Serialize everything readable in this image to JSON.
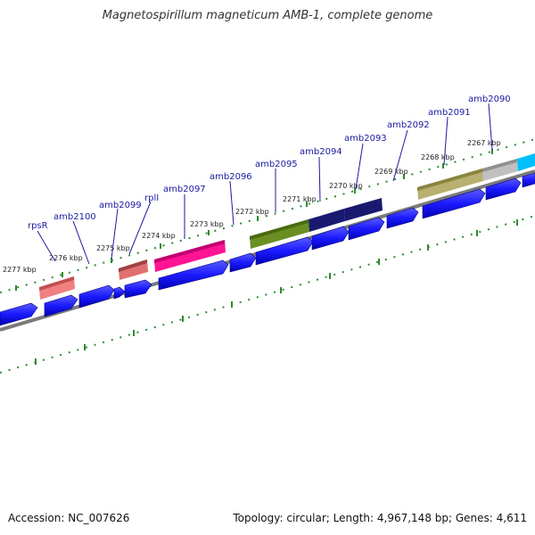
{
  "title": "Magnetospirillum magneticum AMB-1, complete genome",
  "footer": {
    "accession": "Accession: NC_007626",
    "topology": "Topology: circular; Length: 4,967,148 bp; Genes: 4,611"
  },
  "colors": {
    "cds_forward": "#1a1aff",
    "backbone": "#808080",
    "tick": "#2e8b2e",
    "label": "#1a1aa0"
  },
  "tick_labels": [
    "2277 kbp",
    "2276 kbp",
    "2275 kbp",
    "2274 kbp",
    "2273 kbp",
    "2272 kbp",
    "2271 kbp",
    "2270 kbp",
    "2269 kbp",
    "2268 kbp",
    "2267 kbp"
  ],
  "gene_labels": [
    "rpsR",
    "amb2100",
    "amb2099",
    "rplI",
    "amb2097",
    "amb2096",
    "amb2095",
    "amb2094",
    "amb2093",
    "amb2092",
    "amb2091",
    "amb2090"
  ],
  "feature_colors": [
    "#f08080",
    "#e07070",
    "#ff1493",
    "#6b8e23",
    "#191970",
    "#191970",
    "#b8b070",
    "#c0c0c0",
    "#00bfff"
  ]
}
